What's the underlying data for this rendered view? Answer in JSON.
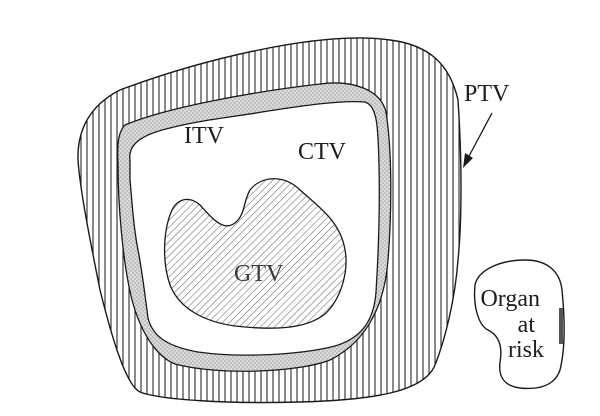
{
  "labels": {
    "ptv": "PTV",
    "itv": "ITV",
    "ctv": "CTV",
    "gtv": "GTV",
    "organ_at_risk": [
      "Organ",
      "at",
      "risk"
    ]
  },
  "colors": {
    "outline": "#1a1a1a",
    "ptv_hatch": "#2a2a2a",
    "itv_fill": "#d6d6d6",
    "gtv_hatch": "#6a6a6a",
    "background": "#ffffff"
  }
}
